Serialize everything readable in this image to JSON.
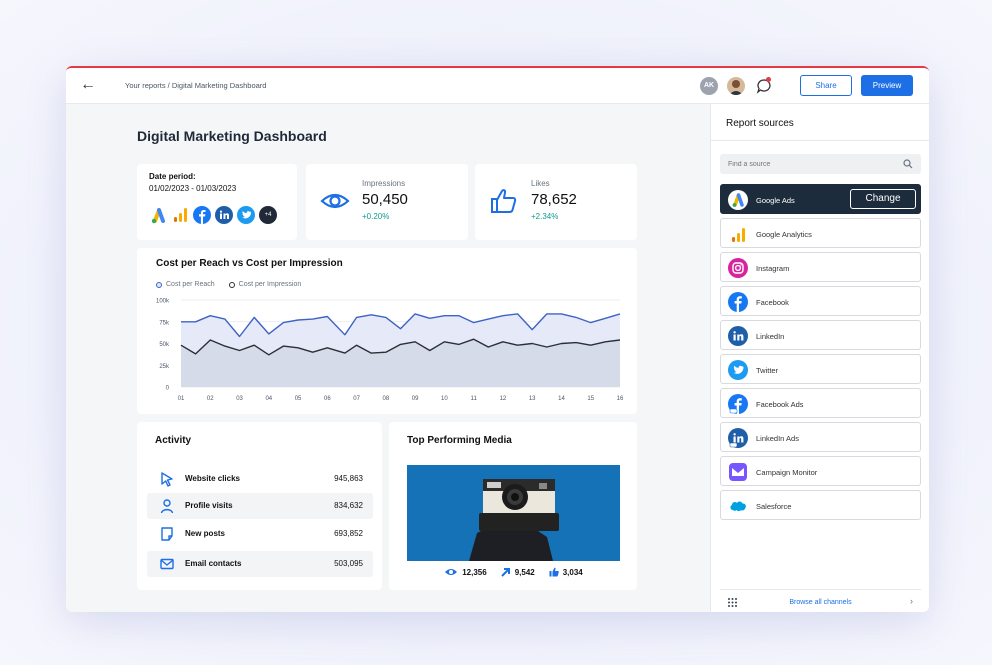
{
  "breadcrumb": "Your reports / Digital Marketing Dashboard",
  "header": {
    "avatar_initials": "AK",
    "share_label": "Share",
    "preview_label": "Preview",
    "accent_color": "#1d6fe5",
    "top_border_color": "#e53945"
  },
  "page_title": "Digital Marketing Dashboard",
  "date_card": {
    "label": "Date period:",
    "value": "01/02/2023 - 01/03/2023",
    "icons": [
      "google-ads-icon",
      "google-analytics-icon",
      "facebook-icon",
      "linkedin-icon",
      "twitter-icon"
    ],
    "more": "+4"
  },
  "impressions": {
    "label": "Impressions",
    "value": "50,450",
    "change": "+0.20%"
  },
  "likes": {
    "label": "Likes",
    "value": "78,652",
    "change": "+2.34%"
  },
  "chart": {
    "title": "Cost per Reach vs Cost per Impression"
  },
  "chart_data": {
    "type": "area",
    "title": "Cost per Reach vs Cost per Impression",
    "x": [
      "01",
      "02",
      "03",
      "04",
      "05",
      "06",
      "07",
      "08",
      "09",
      "10",
      "11",
      "12",
      "13",
      "14",
      "15",
      "16"
    ],
    "yticks": [
      "0",
      "25k",
      "50k",
      "75k",
      "100k"
    ],
    "ylim": [
      0,
      100000
    ],
    "legend_position": "top-left",
    "grid": true,
    "series": [
      {
        "name": "Cost per Reach",
        "color": "#3d63c4",
        "points": [
          [
            1,
            75000
          ],
          [
            1.5,
            75000
          ],
          [
            2,
            82000
          ],
          [
            2.5,
            78000
          ],
          [
            3,
            58000
          ],
          [
            3.5,
            80000
          ],
          [
            4,
            61000
          ],
          [
            4.5,
            74000
          ],
          [
            5,
            77000
          ],
          [
            5.5,
            78000
          ],
          [
            6,
            81000
          ],
          [
            6.6,
            60000
          ],
          [
            7,
            80000
          ],
          [
            7.5,
            83000
          ],
          [
            8,
            80000
          ],
          [
            8.5,
            67000
          ],
          [
            9,
            84000
          ],
          [
            9.5,
            79000
          ],
          [
            10,
            82000
          ],
          [
            10.5,
            82000
          ],
          [
            11,
            74000
          ],
          [
            11.5,
            78000
          ],
          [
            12,
            82000
          ],
          [
            12.5,
            84000
          ],
          [
            13,
            66000
          ],
          [
            13.5,
            84000
          ],
          [
            14,
            84000
          ],
          [
            14.5,
            80000
          ],
          [
            15,
            74000
          ],
          [
            15.5,
            79000
          ],
          [
            16,
            84000
          ]
        ]
      },
      {
        "name": "Cost per Impression",
        "color": "#2b2f36",
        "points": [
          [
            1,
            48000
          ],
          [
            1.5,
            38000
          ],
          [
            2,
            54000
          ],
          [
            2.5,
            47000
          ],
          [
            3,
            42000
          ],
          [
            3.5,
            48000
          ],
          [
            4,
            37000
          ],
          [
            4.5,
            47000
          ],
          [
            5,
            45000
          ],
          [
            5.5,
            40000
          ],
          [
            6,
            45000
          ],
          [
            6.6,
            39000
          ],
          [
            7,
            48000
          ],
          [
            7.5,
            39000
          ],
          [
            8,
            40000
          ],
          [
            8.5,
            49000
          ],
          [
            9,
            52000
          ],
          [
            9.5,
            42000
          ],
          [
            10,
            52000
          ],
          [
            10.5,
            49000
          ],
          [
            11,
            55000
          ],
          [
            11.5,
            46000
          ],
          [
            12,
            52000
          ],
          [
            12.5,
            48000
          ],
          [
            13,
            50000
          ],
          [
            13.5,
            46000
          ],
          [
            14,
            50000
          ],
          [
            14.5,
            51000
          ],
          [
            15,
            48000
          ],
          [
            15.5,
            52000
          ],
          [
            16,
            54000
          ]
        ]
      }
    ]
  },
  "activity": {
    "title": "Activity",
    "rows": [
      {
        "icon": "cursor-icon",
        "label": "Website clicks",
        "value": "945,863"
      },
      {
        "icon": "user-icon",
        "label": "Profile visits",
        "value": "834,632"
      },
      {
        "icon": "post-icon",
        "label": "New posts",
        "value": "693,852"
      },
      {
        "icon": "mail-icon",
        "label": "Email contacts",
        "value": "503,095"
      }
    ]
  },
  "media": {
    "title": "Top Performing Media",
    "views": "12,356",
    "shares": "9,542",
    "likes": "3,034"
  },
  "panel": {
    "title": "Report sources",
    "search_placeholder": "Find a source",
    "change_label": "Change",
    "browse_label": "Browse all channels",
    "sources": [
      {
        "label": "Google Ads",
        "icon": "google-ads-icon",
        "active": true
      },
      {
        "label": "Google Analytics",
        "icon": "google-analytics-icon"
      },
      {
        "label": "Instagram",
        "icon": "instagram-icon"
      },
      {
        "label": "Facebook",
        "icon": "facebook-icon"
      },
      {
        "label": "LinkedIn",
        "icon": "linkedin-icon"
      },
      {
        "label": "Twitter",
        "icon": "twitter-icon"
      },
      {
        "label": "Facebook Ads",
        "icon": "facebook-ads-icon"
      },
      {
        "label": "LinkedIn Ads",
        "icon": "linkedin-ads-icon"
      },
      {
        "label": "Campaign Monitor",
        "icon": "campaign-monitor-icon"
      },
      {
        "label": "Salesforce",
        "icon": "salesforce-icon"
      }
    ]
  }
}
